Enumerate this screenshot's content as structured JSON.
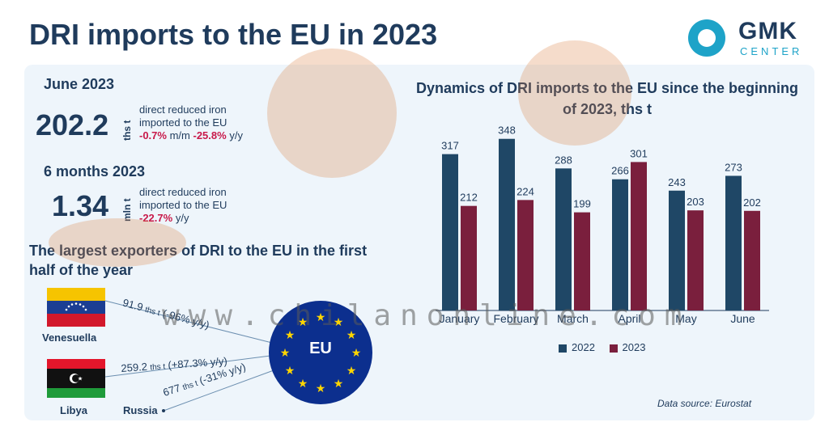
{
  "title": "DRI imports to the EU in 2023",
  "logo": {
    "word": "GMK",
    "sub": "CENTER"
  },
  "june": {
    "heading": "June 2023",
    "value": "202.2",
    "unit": "ths t",
    "desc_line1": "direct reduced iron",
    "desc_line2": "imported to the EU",
    "mm_value": "-0.7%",
    "mm_label": "m/m",
    "yy_value": "-25.8%",
    "yy_label": "y/y"
  },
  "six_months": {
    "heading": "6 months 2023",
    "value": "1.34",
    "unit": "mln t",
    "desc_line1": "direct reduced iron",
    "desc_line2": "imported to the EU",
    "yy_value": "-22.7%",
    "yy_label": "y/y"
  },
  "exporters": {
    "heading": "The largest exporters of DRI to the EU in the first half of the year",
    "items": [
      {
        "country": "Venesuella",
        "amount": "91.9",
        "unit": "ths t",
        "change": "(-96% y/y)"
      },
      {
        "country": "Libya",
        "amount": "259.2",
        "unit": "ths t",
        "change": "(+87.3% y/y)"
      },
      {
        "country": "Russia",
        "amount": "677",
        "unit": "ths t",
        "change": "(-31% y/y)"
      }
    ],
    "destination": "EU"
  },
  "colors": {
    "y2022": "#1f4766",
    "y2023": "#7a1f3d",
    "accent": "#c8194a",
    "navy": "#1f3b5c"
  },
  "watermark": "www.chilanonline.com",
  "source": "Data source:  Eurostat",
  "chart_data": {
    "type": "bar",
    "title": "Dynamics of DRI imports to the EU since the beginning of 2023, ths t",
    "categories": [
      "January",
      "February",
      "March",
      "April",
      "May",
      "June"
    ],
    "series": [
      {
        "name": "2022",
        "values": [
          317,
          348,
          288,
          266,
          243,
          273
        ]
      },
      {
        "name": "2023",
        "values": [
          212,
          224,
          199,
          301,
          203,
          202
        ]
      }
    ],
    "ylim": [
      0,
      400
    ],
    "grid": false,
    "legend": "bottom"
  }
}
